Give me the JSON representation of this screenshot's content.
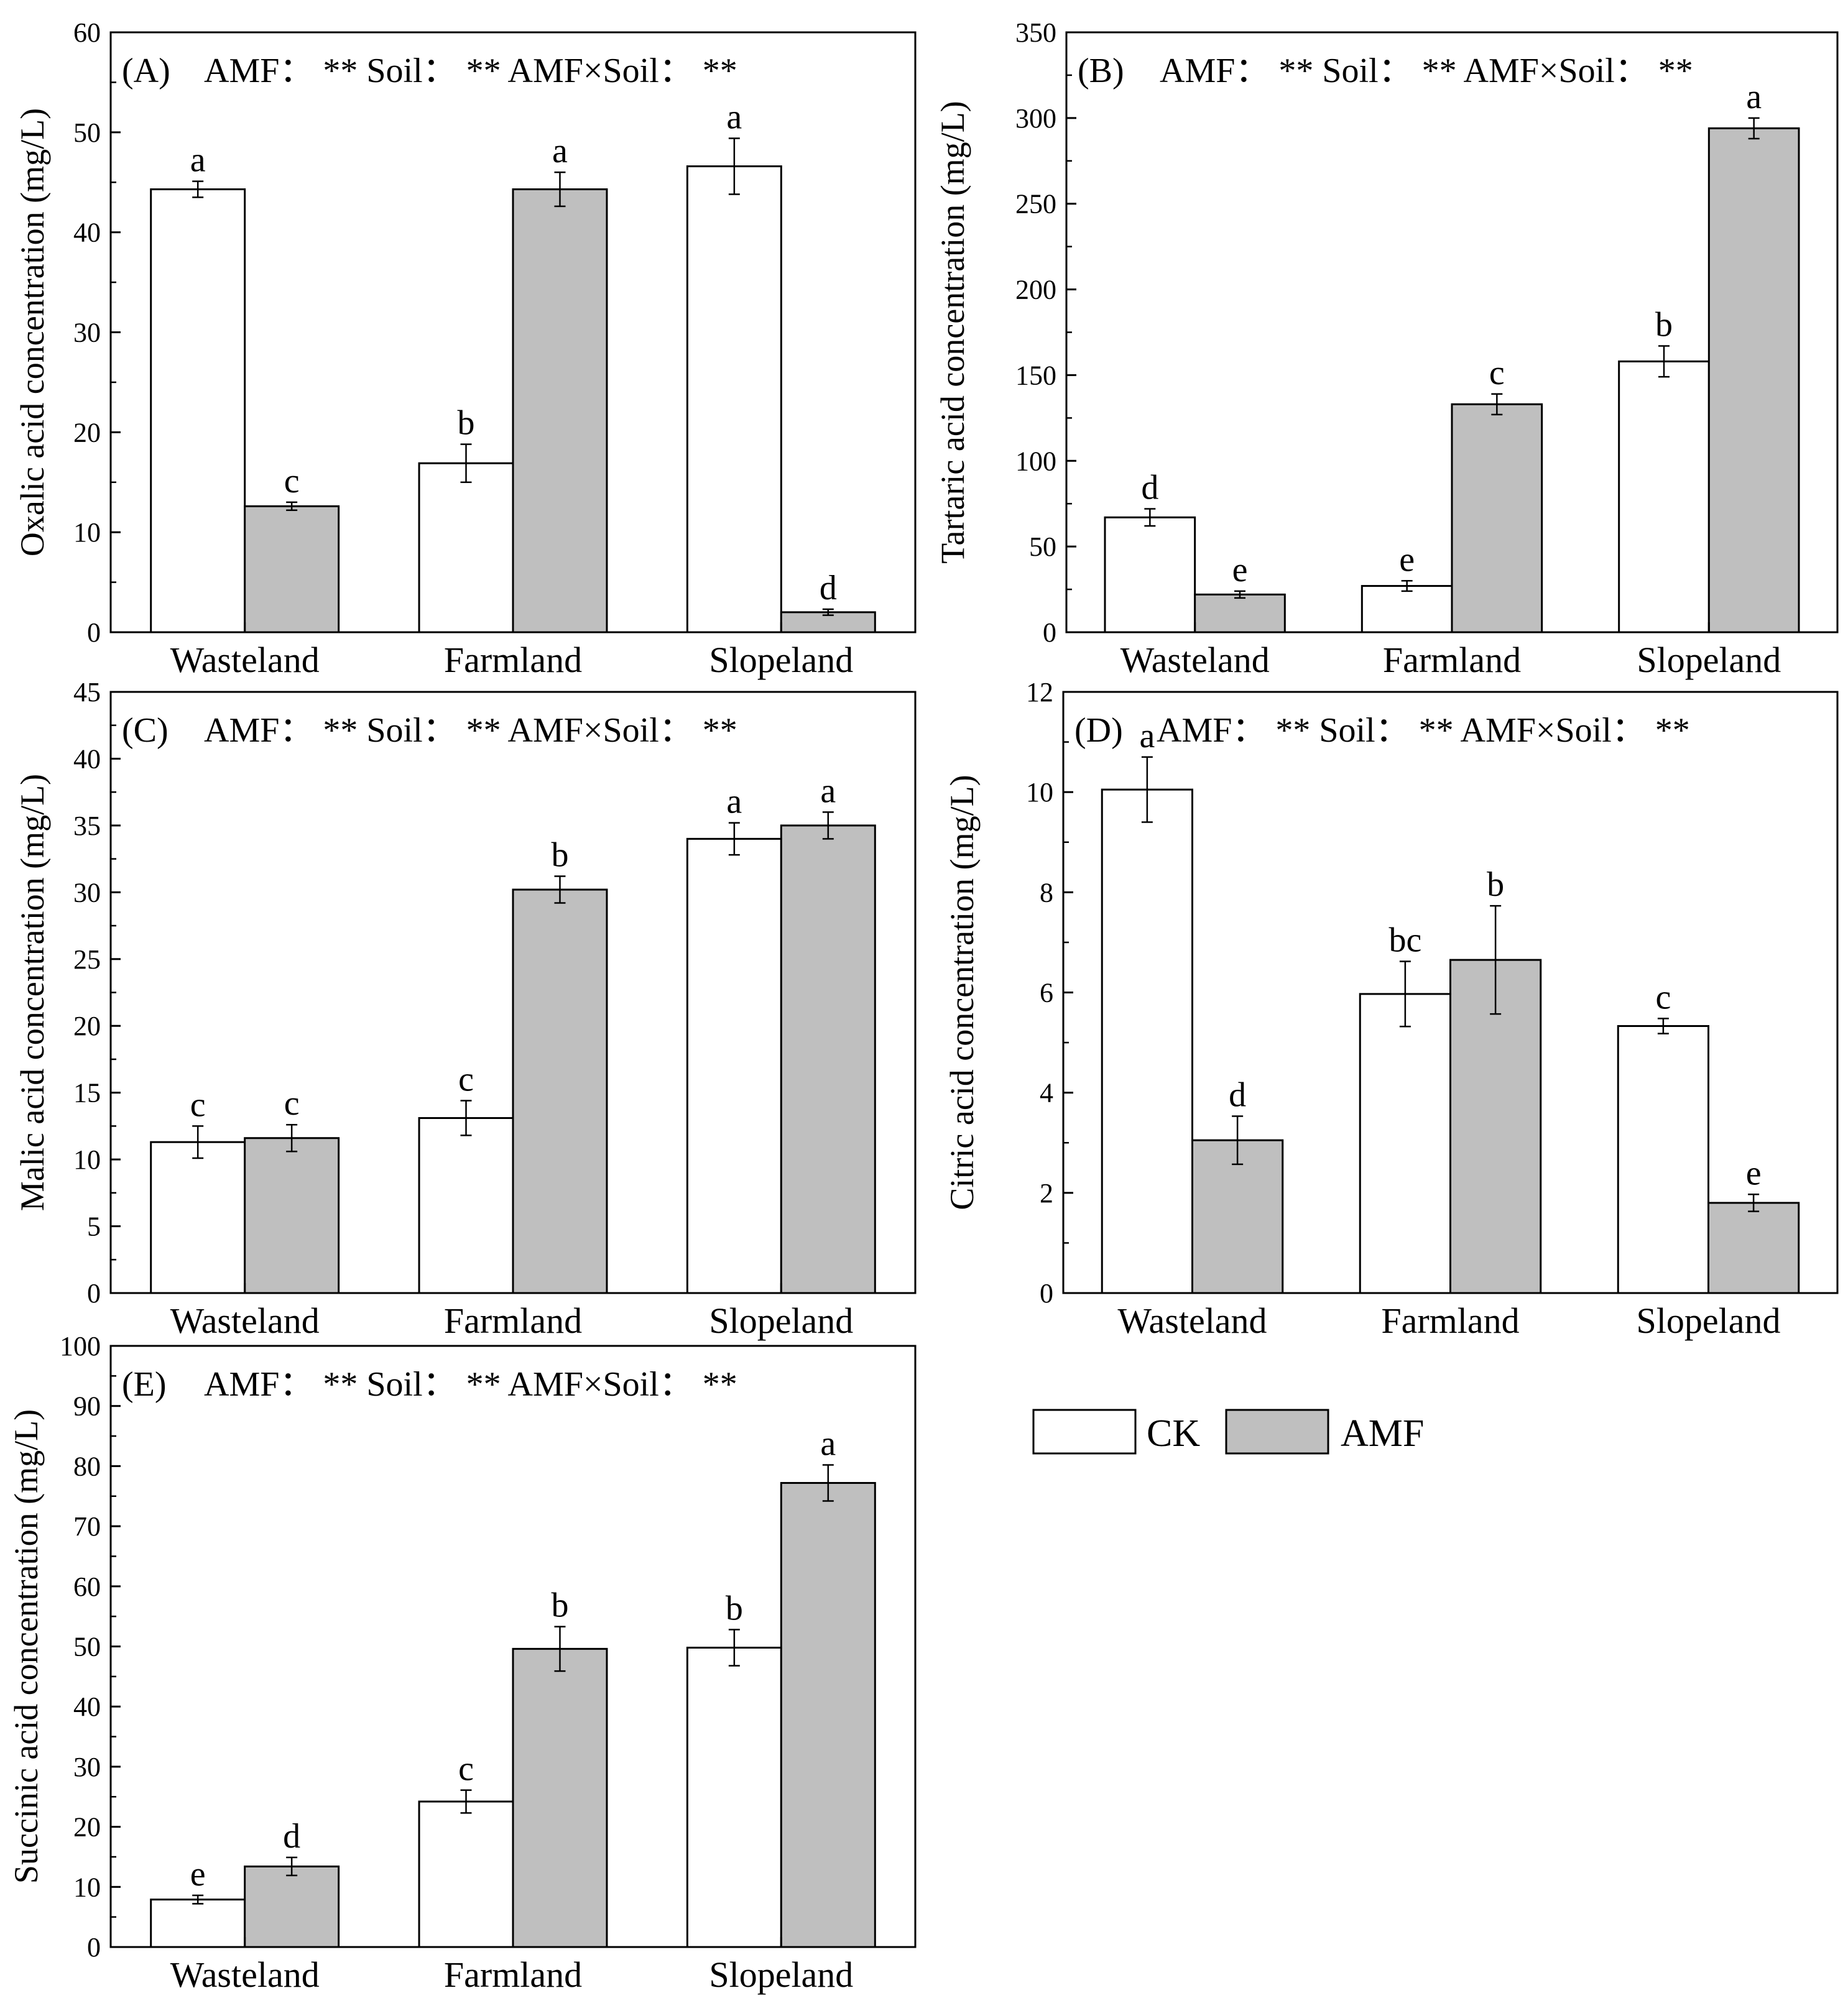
{
  "figure": {
    "categories": [
      "Wasteland",
      "Farmland",
      "Slopeland"
    ],
    "colors": {
      "ck": "#ffffff",
      "amf": "#bfbfbf",
      "stroke": "#000000"
    },
    "legend": {
      "ck_label": "CK",
      "amf_label": "AMF"
    }
  },
  "chart_data": [
    {
      "type": "bar",
      "panel": "(A)",
      "annotation": "AMF：  **   Soil：  **   AMF×Soil：  **",
      "ylabel": "Oxalic acid concentration (mg/L)",
      "ylim": [
        0,
        60
      ],
      "yticks": [
        0,
        10,
        20,
        30,
        40,
        50,
        60
      ],
      "minor": 5,
      "categories": [
        "Wasteland",
        "Farmland",
        "Slopeland"
      ],
      "series": [
        {
          "name": "CK",
          "values": [
            44.3,
            16.9,
            46.6
          ],
          "errors": [
            0.8,
            1.9,
            2.8
          ],
          "letters": [
            "a",
            "b",
            "a"
          ]
        },
        {
          "name": "AMF",
          "values": [
            12.6,
            44.3,
            2.0
          ],
          "errors": [
            0.4,
            1.7,
            0.3
          ],
          "letters": [
            "c",
            "a",
            "d"
          ]
        }
      ]
    },
    {
      "type": "bar",
      "panel": "(B)",
      "annotation": "AMF：  **   Soil：  **   AMF×Soil：  **",
      "ylabel": "Tartaric acid concentration (mg/L)",
      "ylim": [
        0,
        350
      ],
      "yticks": [
        0,
        50,
        100,
        150,
        200,
        250,
        300,
        350
      ],
      "minor": 25,
      "categories": [
        "Wasteland",
        "Farmland",
        "Slopeland"
      ],
      "series": [
        {
          "name": "CK",
          "values": [
            67,
            27,
            158
          ],
          "errors": [
            5,
            3,
            9
          ],
          "letters": [
            "d",
            "e",
            "b"
          ]
        },
        {
          "name": "AMF",
          "values": [
            22,
            133,
            294
          ],
          "errors": [
            2,
            6,
            6
          ],
          "letters": [
            "e",
            "c",
            "a"
          ]
        }
      ]
    },
    {
      "type": "bar",
      "panel": "(C)",
      "annotation": "AMF：  **   Soil：  **   AMF×Soil：  **",
      "ylabel": "Malic acid concentration (mg/L)",
      "ylim": [
        0,
        45
      ],
      "yticks": [
        0,
        5,
        10,
        15,
        20,
        25,
        30,
        35,
        40,
        45
      ],
      "minor": 2.5,
      "categories": [
        "Wasteland",
        "Farmland",
        "Slopeland"
      ],
      "series": [
        {
          "name": "CK",
          "values": [
            11.3,
            13.1,
            34.0
          ],
          "errors": [
            1.2,
            1.3,
            1.2
          ],
          "letters": [
            "c",
            "c",
            "a"
          ]
        },
        {
          "name": "AMF",
          "values": [
            11.6,
            30.2,
            35.0
          ],
          "errors": [
            1.0,
            1.0,
            1.0
          ],
          "letters": [
            "c",
            "b",
            "a"
          ]
        }
      ]
    },
    {
      "type": "bar",
      "panel": "(D)",
      "annotation": "AMF：  **   Soil：  **   AMF×Soil：  **",
      "ylabel": "Citric acid concentration (mg/L)",
      "ylim": [
        0,
        12
      ],
      "yticks": [
        0,
        2,
        4,
        6,
        8,
        10,
        12
      ],
      "minor": 1,
      "categories": [
        "Wasteland",
        "Farmland",
        "Slopeland"
      ],
      "series": [
        {
          "name": "CK",
          "values": [
            10.05,
            5.97,
            5.33
          ],
          "errors": [
            0.65,
            0.65,
            0.15
          ],
          "letters": [
            "a",
            "bc",
            "c"
          ]
        },
        {
          "name": "AMF",
          "values": [
            3.05,
            6.65,
            1.8
          ],
          "errors": [
            0.48,
            1.08,
            0.17
          ],
          "letters": [
            "d",
            "b",
            "e"
          ]
        }
      ]
    },
    {
      "type": "bar",
      "panel": "(E)",
      "annotation": "AMF：  **   Soil：  **   AMF×Soil：  **",
      "ylabel": "Succinic acid concentration (mg/L)",
      "ylim": [
        0,
        100
      ],
      "yticks": [
        0,
        10,
        20,
        30,
        40,
        50,
        60,
        70,
        80,
        90,
        100
      ],
      "minor": 5,
      "categories": [
        "Wasteland",
        "Farmland",
        "Slopeland"
      ],
      "series": [
        {
          "name": "CK",
          "values": [
            7.9,
            24.2,
            49.8
          ],
          "errors": [
            0.7,
            1.9,
            3.0
          ],
          "letters": [
            "e",
            "c",
            "b"
          ]
        },
        {
          "name": "AMF",
          "values": [
            13.4,
            49.6,
            77.2
          ],
          "errors": [
            1.5,
            3.7,
            3.0
          ],
          "letters": [
            "d",
            "b",
            "a"
          ]
        }
      ]
    }
  ]
}
